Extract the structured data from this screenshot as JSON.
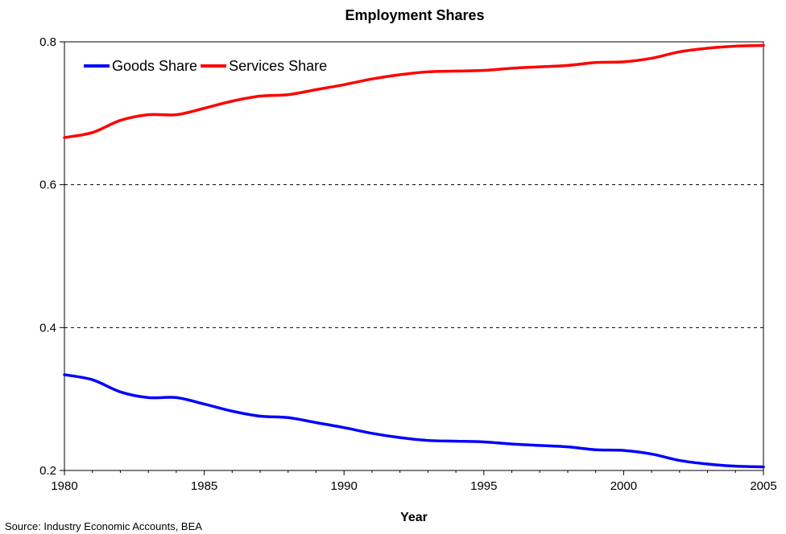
{
  "chart_data": {
    "type": "line",
    "title": "Employment Shares",
    "xlabel": "Year",
    "ylabel": "",
    "xlim": [
      1980,
      2005
    ],
    "ylim": [
      0.2,
      0.8
    ],
    "x_ticks": [
      1980,
      1985,
      1990,
      1995,
      2000,
      2005
    ],
    "y_ticks": [
      0.2,
      0.4,
      0.6,
      0.8
    ],
    "y_tick_labels": [
      "0.2",
      "0.4",
      "0.6",
      "0.8"
    ],
    "grid": "horizontal dashed",
    "legend_position": "top-left",
    "x": [
      1980,
      1981,
      1982,
      1983,
      1984,
      1985,
      1986,
      1987,
      1988,
      1989,
      1990,
      1991,
      1992,
      1993,
      1994,
      1995,
      1996,
      1997,
      1998,
      1999,
      2000,
      2001,
      2002,
      2003,
      2004,
      2005
    ],
    "series": [
      {
        "name": "Goods Share",
        "color": "#0000ff",
        "values": [
          0.334,
          0.327,
          0.31,
          0.302,
          0.302,
          0.293,
          0.283,
          0.276,
          0.274,
          0.267,
          0.26,
          0.252,
          0.246,
          0.242,
          0.241,
          0.24,
          0.237,
          0.235,
          0.233,
          0.229,
          0.228,
          0.223,
          0.214,
          0.209,
          0.206,
          0.205
        ]
      },
      {
        "name": "Services Share",
        "color": "#ff0000",
        "values": [
          0.666,
          0.673,
          0.69,
          0.698,
          0.698,
          0.707,
          0.717,
          0.724,
          0.726,
          0.733,
          0.74,
          0.748,
          0.754,
          0.758,
          0.759,
          0.76,
          0.763,
          0.765,
          0.767,
          0.771,
          0.772,
          0.777,
          0.786,
          0.791,
          0.794,
          0.795
        ]
      }
    ],
    "source": "Source: Industry Economic Accounts, BEA"
  }
}
